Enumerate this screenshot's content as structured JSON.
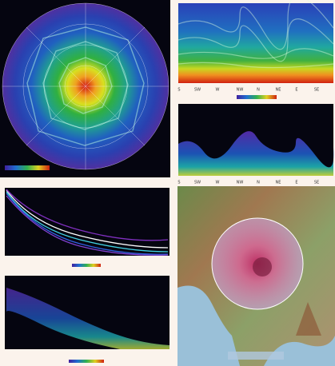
{
  "panorama": {
    "directions": [
      "S",
      "SW",
      "W",
      "NW",
      "N",
      "NE",
      "E",
      "SE"
    ]
  }
}
